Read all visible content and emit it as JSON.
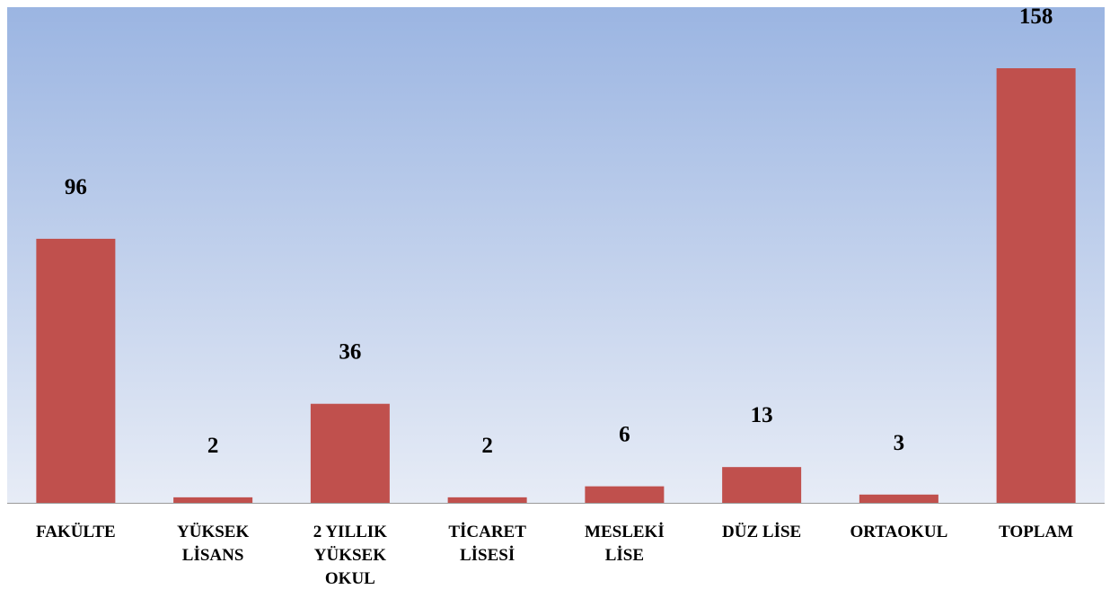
{
  "chart_data": {
    "type": "bar",
    "categories": [
      "FAKÜLTE",
      "YÜKSEK LİSANS",
      "2 YILLIK YÜKSEK OKUL",
      "TİCARET LİSESİ",
      "MESLEKİ LİSE",
      "DÜZ LİSE",
      "ORTAOKUL",
      "TOPLAM"
    ],
    "values": [
      96,
      2,
      36,
      2,
      6,
      13,
      3,
      158
    ],
    "color": "#c0504d"
  }
}
